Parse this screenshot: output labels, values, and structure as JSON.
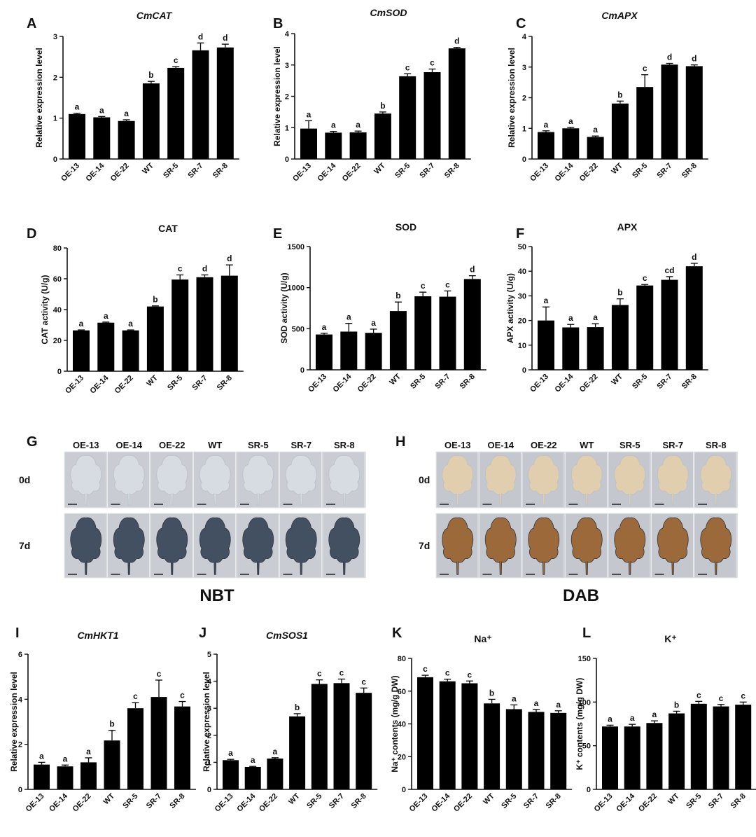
{
  "chart_data": [
    {
      "panel": "A",
      "title": "CmCAT",
      "title_italic": true,
      "type": "bar",
      "categories": [
        "OE-13",
        "OE-14",
        "OE-22",
        "WT",
        "SR-5",
        "SR-7",
        "SR-8"
      ],
      "values": [
        1.1,
        1.02,
        0.93,
        1.85,
        2.23,
        2.66,
        2.73
      ],
      "errors": [
        0.02,
        0.02,
        0.03,
        0.05,
        0.03,
        0.18,
        0.08
      ],
      "letters": [
        "a",
        "a",
        "a",
        "b",
        "c",
        "d",
        "d"
      ],
      "ylabel": "Relative expression level",
      "ylim": [
        0,
        3
      ],
      "yticks": [
        0,
        1,
        2,
        3
      ]
    },
    {
      "panel": "B",
      "title": "CmSOD",
      "title_italic": true,
      "type": "bar",
      "categories": [
        "OE-13",
        "OE-14",
        "OE-22",
        "WT",
        "SR-5",
        "SR-7",
        "SR-8"
      ],
      "values": [
        0.97,
        0.84,
        0.85,
        1.45,
        2.64,
        2.77,
        3.53
      ],
      "errors": [
        0.25,
        0.04,
        0.04,
        0.05,
        0.08,
        0.1,
        0.03
      ],
      "letters": [
        "a",
        "a",
        "a",
        "b",
        "c",
        "c",
        "d"
      ],
      "ylabel": "Relative expression level",
      "ylim": [
        0,
        4
      ],
      "yticks": [
        0,
        1,
        2,
        3,
        4
      ]
    },
    {
      "panel": "C",
      "title": "CmAPX",
      "title_italic": true,
      "type": "bar",
      "categories": [
        "OE-13",
        "OE-14",
        "OE-22",
        "WT",
        "SR-5",
        "SR-7",
        "SR-8"
      ],
      "values": [
        0.88,
        1.0,
        0.72,
        1.81,
        2.35,
        3.08,
        3.03
      ],
      "errors": [
        0.04,
        0.03,
        0.03,
        0.08,
        0.4,
        0.04,
        0.04
      ],
      "letters": [
        "a",
        "a",
        "a",
        "b",
        "c",
        "d",
        "d"
      ],
      "ylabel": "Relative expression level",
      "ylim": [
        0,
        4
      ],
      "yticks": [
        0,
        1,
        2,
        3,
        4
      ]
    },
    {
      "panel": "D",
      "title": "CAT",
      "title_italic": false,
      "type": "bar",
      "categories": [
        "OE-13",
        "OE-14",
        "OE-22",
        "WT",
        "SR-5",
        "SR-7",
        "SR-8"
      ],
      "values": [
        26.5,
        31.5,
        26.5,
        42,
        59.5,
        61,
        62
      ],
      "errors": [
        0.3,
        0.4,
        0.3,
        0.4,
        3,
        1.5,
        7
      ],
      "letters": [
        "a",
        "a",
        "a",
        "b",
        "c",
        "d",
        "d"
      ],
      "ylabel": "CAT activity (U/g)",
      "ylim": [
        0,
        80
      ],
      "yticks": [
        0,
        20,
        40,
        60,
        80
      ]
    },
    {
      "panel": "E",
      "title": "SOD",
      "title_italic": false,
      "type": "bar",
      "categories": [
        "OE-13",
        "OE-14",
        "OE-22",
        "WT",
        "SR-5",
        "SR-7",
        "SR-8"
      ],
      "values": [
        430,
        465,
        450,
        715,
        895,
        890,
        1105
      ],
      "errors": [
        15,
        100,
        45,
        110,
        50,
        70,
        40
      ],
      "letters": [
        "a",
        "a",
        "a",
        "b",
        "c",
        "c",
        "d"
      ],
      "ylabel": "SOD activity (U/g)",
      "ylim": [
        0,
        1500
      ],
      "yticks": [
        0,
        500,
        1000,
        1500
      ]
    },
    {
      "panel": "F",
      "title": "APX",
      "title_italic": false,
      "type": "bar",
      "categories": [
        "OE-13",
        "OE-14",
        "OE-22",
        "WT",
        "SR-5",
        "SR-7",
        "SR-8"
      ],
      "values": [
        20,
        17.2,
        17.3,
        26.3,
        34.2,
        36.5,
        42
      ],
      "errors": [
        5.5,
        1.2,
        1.4,
        2.5,
        0.4,
        1.3,
        1.2
      ],
      "letters": [
        "a",
        "a",
        "a",
        "b",
        "c",
        "cd",
        "d"
      ],
      "ylabel": "APX activity (U/g)",
      "ylim": [
        0,
        50
      ],
      "yticks": [
        0,
        10,
        20,
        30,
        40,
        50
      ]
    },
    {
      "panel": "I",
      "title": "CmHKT1",
      "title_italic": true,
      "type": "bar",
      "categories": [
        "OE-13",
        "OE-14",
        "OE-22",
        "WT",
        "SR-5",
        "SR-7",
        "SR-8"
      ],
      "values": [
        1.1,
        1.02,
        1.2,
        2.17,
        3.6,
        4.1,
        3.68
      ],
      "errors": [
        0.1,
        0.06,
        0.2,
        0.45,
        0.25,
        0.75,
        0.22
      ],
      "letters": [
        "a",
        "a",
        "a",
        "b",
        "c",
        "c",
        "c"
      ],
      "ylabel": "Relative expression level",
      "ylim": [
        0,
        6
      ],
      "yticks": [
        0,
        2,
        4,
        6
      ]
    },
    {
      "panel": "J",
      "title": "CmSOS1",
      "title_italic": true,
      "type": "bar",
      "categories": [
        "OE-13",
        "OE-14",
        "OE-22",
        "WT",
        "SR-5",
        "SR-7",
        "SR-8"
      ],
      "values": [
        1.08,
        0.83,
        1.14,
        2.7,
        3.9,
        3.93,
        3.57
      ],
      "errors": [
        0.03,
        0.02,
        0.03,
        0.1,
        0.15,
        0.15,
        0.18
      ],
      "letters": [
        "a",
        "a",
        "a",
        "b",
        "c",
        "c",
        "c"
      ],
      "ylabel": "Relative expression level",
      "ylim": [
        0,
        5
      ],
      "yticks": [
        0,
        1,
        2,
        3,
        4,
        5
      ]
    },
    {
      "panel": "K",
      "title": "Na⁺",
      "title_italic": false,
      "type": "bar",
      "categories": [
        "OE-13",
        "OE-14",
        "OE-22",
        "WT",
        "SR-5",
        "SR-7",
        "SR-8"
      ],
      "values": [
        68.5,
        66,
        64.8,
        52.5,
        49,
        47.3,
        46.7
      ],
      "errors": [
        1.2,
        1.3,
        1.4,
        2.5,
        2.6,
        1.5,
        1.3
      ],
      "letters": [
        "c",
        "c",
        "c",
        "b",
        "a",
        "a",
        "a"
      ],
      "ylabel": "Na⁺ contents (mg/g DW)",
      "ylim": [
        0,
        80
      ],
      "yticks": [
        0,
        20,
        40,
        60,
        80
      ]
    },
    {
      "panel": "L",
      "title": "K⁺",
      "title_italic": false,
      "type": "bar",
      "categories": [
        "OE-13",
        "OE-14",
        "OE-22",
        "WT",
        "SR-5",
        "SR-7",
        "SR-8"
      ],
      "values": [
        72,
        72,
        76,
        87,
        98,
        95,
        97
      ],
      "errors": [
        1.5,
        2.5,
        2.5,
        2.5,
        2.8,
        2.2,
        3
      ],
      "letters": [
        "a",
        "a",
        "a",
        "b",
        "c",
        "c",
        "c"
      ],
      "ylabel": "K⁺ contents (mg/g DW)",
      "ylim": [
        0,
        150
      ],
      "yticks": [
        0,
        50,
        100,
        150
      ]
    }
  ],
  "stains": [
    {
      "panel": "G",
      "name": "NBT",
      "columns": [
        "OE-13",
        "OE-14",
        "OE-22",
        "WT",
        "SR-5",
        "SR-7",
        "SR-8"
      ],
      "rows": [
        "0d",
        "7d"
      ],
      "colors": {
        "bg": "#c9ccd2",
        "leaf0": "#d7dde3",
        "leaf7": "#3c4a5c"
      }
    },
    {
      "panel": "H",
      "name": "DAB",
      "columns": [
        "OE-13",
        "OE-14",
        "OE-22",
        "WT",
        "SR-5",
        "SR-7",
        "SR-8"
      ],
      "rows": [
        "0d",
        "7d"
      ],
      "colors": {
        "bg": "#c4c8ce",
        "leaf0": "#e2cfae",
        "leaf7": "#9a6434"
      }
    }
  ]
}
